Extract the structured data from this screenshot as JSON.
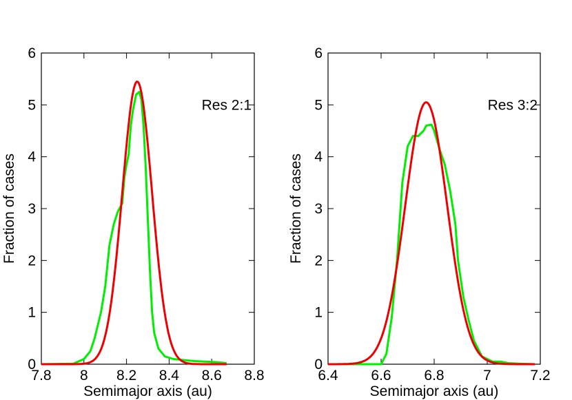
{
  "chart_data": [
    {
      "type": "line",
      "annotation": "Res 2:1",
      "xlabel": "Semimajor axis (au)",
      "ylabel": "Fraction of cases",
      "xlim": [
        7.8,
        8.8
      ],
      "ylim": [
        0,
        6
      ],
      "xticks": [
        "7.8",
        "8",
        "8.2",
        "8.4",
        "8.6",
        "8.8"
      ],
      "yticks": [
        "0",
        "1",
        "2",
        "3",
        "4",
        "5",
        "6"
      ],
      "grid": false,
      "series": [
        {
          "color": "#00ee00",
          "points": [
            [
              7.8,
              0.0
            ],
            [
              7.95,
              0.01
            ],
            [
              8.0,
              0.1
            ],
            [
              8.03,
              0.25
            ],
            [
              8.05,
              0.5
            ],
            [
              8.08,
              1.0
            ],
            [
              8.1,
              1.5
            ],
            [
              8.12,
              2.3
            ],
            [
              8.14,
              2.7
            ],
            [
              8.16,
              2.95
            ],
            [
              8.18,
              3.1
            ],
            [
              8.19,
              3.6
            ],
            [
              8.2,
              3.85
            ],
            [
              8.21,
              4.05
            ],
            [
              8.22,
              4.6
            ],
            [
              8.23,
              4.9
            ],
            [
              8.245,
              5.2
            ],
            [
              8.26,
              5.25
            ],
            [
              8.27,
              5.1
            ],
            [
              8.28,
              4.6
            ],
            [
              8.29,
              3.8
            ],
            [
              8.3,
              2.8
            ],
            [
              8.31,
              1.8
            ],
            [
              8.32,
              1.0
            ],
            [
              8.33,
              0.6
            ],
            [
              8.35,
              0.3
            ],
            [
              8.38,
              0.15
            ],
            [
              8.42,
              0.1
            ],
            [
              8.47,
              0.08
            ],
            [
              8.52,
              0.06
            ],
            [
              8.57,
              0.05
            ],
            [
              8.62,
              0.04
            ],
            [
              8.67,
              0.02
            ]
          ]
        },
        {
          "color": "#ee0000",
          "curve": "gaussian",
          "amplitude": 5.45,
          "mean": 8.25,
          "sigma": 0.07,
          "x_range": [
            7.8,
            8.67
          ]
        }
      ]
    },
    {
      "type": "line",
      "annotation": "Res 3:2",
      "xlabel": "Semimajor axis (au)",
      "ylabel": "Fraction of cases",
      "xlim": [
        6.4,
        7.2
      ],
      "ylim": [
        0,
        6
      ],
      "xticks": [
        "6.4",
        "6.6",
        "6.8",
        "7",
        "7.2"
      ],
      "yticks": [
        "0",
        "1",
        "2",
        "3",
        "4",
        "5",
        "6"
      ],
      "grid": false,
      "series": [
        {
          "color": "#00ee00",
          "points": [
            [
              6.4,
              0.0
            ],
            [
              6.6,
              0.0
            ],
            [
              6.62,
              0.2
            ],
            [
              6.64,
              0.9
            ],
            [
              6.66,
              2.0
            ],
            [
              6.68,
              3.5
            ],
            [
              6.7,
              4.2
            ],
            [
              6.72,
              4.4
            ],
            [
              6.74,
              4.4
            ],
            [
              6.76,
              4.5
            ],
            [
              6.77,
              4.6
            ],
            [
              6.79,
              4.62
            ],
            [
              6.8,
              4.5
            ],
            [
              6.82,
              4.15
            ],
            [
              6.84,
              3.85
            ],
            [
              6.86,
              3.35
            ],
            [
              6.88,
              2.7
            ],
            [
              6.89,
              2.0
            ],
            [
              6.91,
              1.3
            ],
            [
              6.93,
              0.85
            ],
            [
              6.95,
              0.45
            ],
            [
              6.98,
              0.15
            ],
            [
              7.02,
              0.05
            ],
            [
              7.05,
              0.05
            ],
            [
              7.08,
              0.02
            ],
            [
              7.12,
              0.01
            ],
            [
              7.18,
              0.0
            ]
          ]
        },
        {
          "color": "#ee0000",
          "curve": "gaussian",
          "amplitude": 5.05,
          "mean": 6.77,
          "sigma": 0.079,
          "x_range": [
            6.4,
            7.18
          ]
        }
      ]
    }
  ]
}
